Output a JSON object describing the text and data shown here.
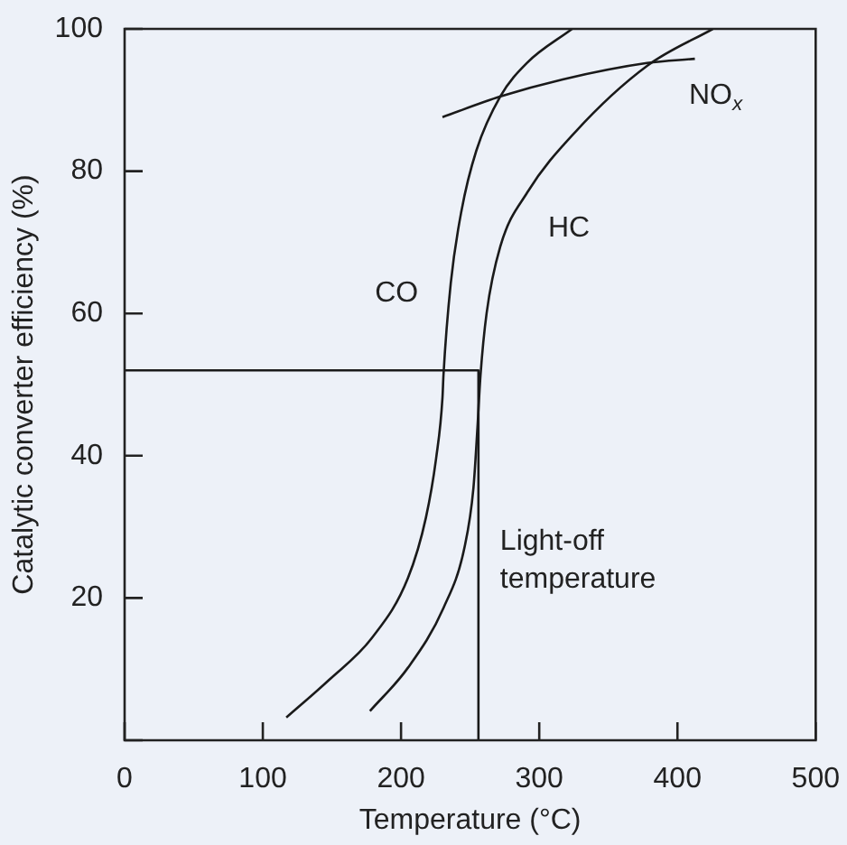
{
  "chart_data": {
    "type": "line",
    "xlabel": "Temperature (°C)",
    "ylabel": "Catalytic converter efficiency (%)",
    "xlim": [
      0,
      500
    ],
    "xticks": [
      0,
      100,
      200,
      300,
      400,
      500
    ],
    "ylim": [
      0,
      100
    ],
    "yticks": [
      {
        "value": 0,
        "label": null
      },
      20,
      40,
      60,
      80,
      100
    ],
    "grid": false,
    "legend": false,
    "marker": "none",
    "line_style": "solid",
    "series": [
      {
        "name": "CO",
        "color": "#1a1a1a",
        "x": [
          117,
          148,
          179,
          205,
          218,
          225.5,
          230,
          230.7,
          236,
          243.7,
          254.5,
          271.8,
          291,
          323.8
        ],
        "values": [
          3.2,
          8.5,
          14.4,
          22.8,
          31.3,
          39.8,
          48.2,
          51.3,
          64.3,
          74.4,
          82.9,
          90.5,
          95.2,
          100
        ]
      },
      {
        "name": "HC",
        "color": "#1a1a1a",
        "x": [
          177.5,
          205,
          230.7,
          245.9,
          252.4,
          255.3,
          257.5,
          261.9,
          271.8,
          291.3,
          326,
          378,
          425.6
        ],
        "values": [
          4.1,
          10.2,
          18.6,
          27.1,
          35.5,
          44,
          51.3,
          60,
          69.4,
          77,
          85.5,
          94.8,
          100
        ]
      },
      {
        "name": "NO$_{x}$",
        "color": "#1a1a1a",
        "x": [
          230,
          272,
          317,
          378,
          412.6
        ],
        "values": [
          87.6,
          90.5,
          92.9,
          95.2,
          95.8
        ]
      },
      {
        "color": "#1a1a1a",
        "x": [
          0,
          256,
          256
        ],
        "values": [
          52,
          52,
          0
        ]
      }
    ],
    "annotations": [
      "Light-off temperature"
    ]
  }
}
